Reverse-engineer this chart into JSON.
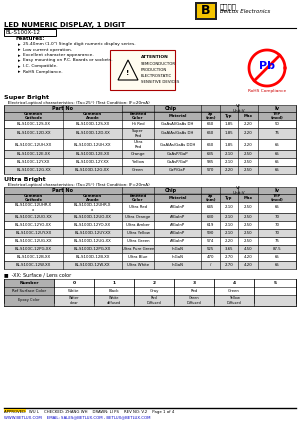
{
  "title_main": "LED NUMERIC DISPLAY, 1 DIGIT",
  "part_number": "BL-S100X-12",
  "features": [
    "25.40mm (1.0\") Single digit numeric display series.",
    "Low current operation.",
    "Excellent character appearance.",
    "Easy mounting on P.C. Boards or sockets.",
    "I.C. Compatible.",
    "RoHS Compliance."
  ],
  "section1_title": "Super Bright",
  "section1_subtitle": "   Electrical-optical characteristics: (Ta=25°) (Test Condition: IF=20mA)",
  "sb_rows": [
    [
      "BL-S100C-12S-XX",
      "BL-S100D-12S-XX",
      "Hi Red",
      "GaAsAl/GaAs DH",
      "660",
      "1.85",
      "2.20",
      "50"
    ],
    [
      "BL-S100C-12D-XX",
      "BL-S100D-12D-XX",
      "Super\nRed",
      "GaAlAs/GaAs DH",
      "660",
      "1.85",
      "2.20",
      "75"
    ],
    [
      "BL-S100C-12UH-XX",
      "BL-S100D-12UH-XX",
      "Ultra\nRed",
      "GaAlAs/GaAs DDH",
      "660",
      "1.85",
      "2.20",
      "65"
    ],
    [
      "BL-S100C-12E-XX",
      "BL-S100D-12E-XX",
      "Orange",
      "GaAsP/GaP",
      "635",
      "2.10",
      "2.50",
      "65"
    ],
    [
      "BL-S100C-12Y-XX",
      "BL-S100D-12Y-XX",
      "Yellow",
      "GaAsP/GaP",
      "585",
      "2.10",
      "2.50",
      "65"
    ],
    [
      "BL-S100C-12G-XX",
      "BL-S100D-12G-XX",
      "Green",
      "GaP/GaP",
      "570",
      "2.20",
      "2.50",
      "65"
    ]
  ],
  "section2_title": "Ultra Bright",
  "section2_subtitle": "   Electrical-optical characteristics: (Ta=25°) (Test Condition: IF=20mA)",
  "ub_rows": [
    [
      "BL-S100C-12UHR-X\nx",
      "BL-S100D-12UHR-X\nx",
      "Ultra Red",
      "AlGaInP",
      "645",
      "2.10",
      "2.50",
      "65"
    ],
    [
      "BL-S100C-12UO-XX",
      "BL-S100D-12UO-XX",
      "Ultra Orange",
      "AlGaInP",
      "630",
      "2.10",
      "2.50",
      "70"
    ],
    [
      "BL-S100C-12YO-XX",
      "BL-S100D-12YO-XX",
      "Ultra Amber",
      "AlGaInP",
      "619",
      "2.10",
      "2.50",
      "70"
    ],
    [
      "BL-S100C-12UY-XX",
      "BL-S100D-12UY-XX",
      "Ultra Yellow",
      "AlGaInP",
      "590",
      "2.10",
      "2.50",
      "70"
    ],
    [
      "BL-S100C-12UG-XX",
      "BL-S100D-12UG-XX",
      "Ultra Green",
      "AlGaInP",
      "574",
      "2.20",
      "2.50",
      "75"
    ],
    [
      "BL-S100C-12PG-XX",
      "BL-S100D-12PG-XX",
      "Ultra Pure Green",
      "InGaN",
      "525",
      "3.65",
      "4.50",
      "87.5"
    ],
    [
      "BL-S100C-12B-XX",
      "BL-S100D-12B-XX",
      "Ultra Blue",
      "InGaN",
      "470",
      "2.70",
      "4.20",
      "65"
    ],
    [
      "BL-S100C-12W-XX",
      "BL-S100D-12W-XX",
      "Ultra White",
      "InGaN",
      "/",
      "2.70",
      "4.20",
      "65"
    ]
  ],
  "xx_note": "■  -XX: Surface / Lens color",
  "color_table_headers": [
    "Number",
    "0",
    "1",
    "2",
    "3",
    "4",
    "5"
  ],
  "color_row1": [
    "Ref Surface Color",
    "White",
    "Black",
    "Gray",
    "Red",
    "Green",
    ""
  ],
  "color_row2_label": "Epoxy Color",
  "color_row2_vals": [
    "Water\nclear",
    "White\ndiffused",
    "Red\nDiffused",
    "Green\nDiffused",
    "Yellow\nDiffused",
    ""
  ],
  "footer_line1": "APPROVED:  WU L    CHECKED: ZHANG WH    DRAWN: LI PS    REV NO: V.2    Page 1 of 4",
  "footer_url": "WWW.BETLUX.COM    EMAIL: SALES@BETLUX.COM , BETLUX@BETLUX.COM",
  "bg_color": "#ffffff",
  "header_bg": "#b0b0b0",
  "alt_row_bg": "#d8d8d8",
  "highlight_row_bg": "#ffff99",
  "footer_url_color": "#0000cc",
  "footer_highlight": "#ffcc00"
}
